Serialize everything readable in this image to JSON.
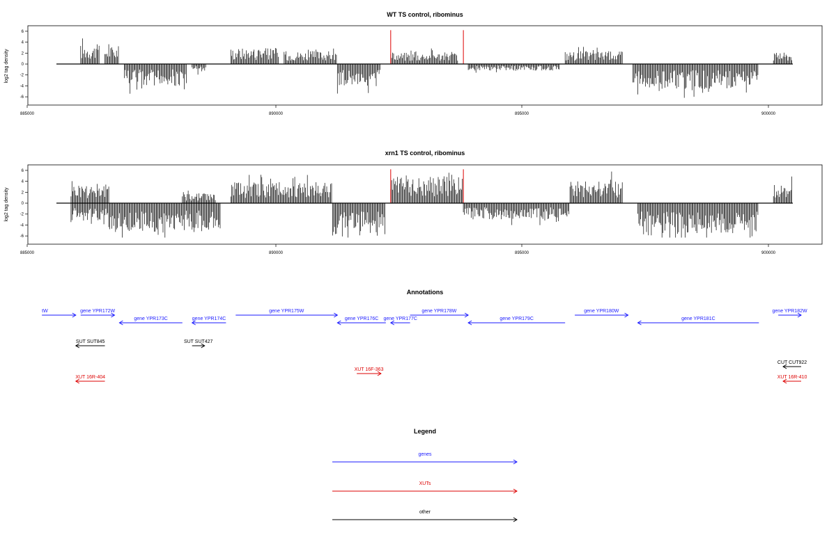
{
  "chart_data": [
    {
      "type": "bar",
      "title": "WT TS control, ribominus",
      "xlabel": "",
      "ylabel": "log2 tag density",
      "xlim": [
        885000,
        901100
      ],
      "ylim": [
        -7,
        6.5
      ],
      "x_ticks": [
        "885000",
        "890000",
        "895000",
        "900000"
      ],
      "y_ticks": [
        "6",
        "4",
        "2",
        "0",
        "-2",
        "-4",
        "-6"
      ],
      "marker_lines": [
        892200,
        893700
      ],
      "marker_color": "#dd0000",
      "segments": [
        {
          "start": 885800,
          "end": 886200,
          "sign": 1,
          "amp": 3.0
        },
        {
          "start": 886300,
          "end": 886600,
          "sign": 1,
          "amp": 2.8
        },
        {
          "start": 886700,
          "end": 888000,
          "sign": -1,
          "amp": 3.3
        },
        {
          "start": 888100,
          "end": 888400,
          "sign": -1,
          "amp": 1.3
        },
        {
          "start": 888900,
          "end": 889900,
          "sign": 1,
          "amp": 2.5
        },
        {
          "start": 890000,
          "end": 891100,
          "sign": 1,
          "amp": 2.0
        },
        {
          "start": 891100,
          "end": 892000,
          "sign": -1,
          "amp": 3.3
        },
        {
          "start": 892200,
          "end": 893600,
          "sign": 1,
          "amp": 1.8
        },
        {
          "start": 893800,
          "end": 895700,
          "sign": -1,
          "amp": 1.0
        },
        {
          "start": 895800,
          "end": 897000,
          "sign": 1,
          "amp": 2.0
        },
        {
          "start": 897200,
          "end": 899800,
          "sign": -1,
          "amp": 3.8
        },
        {
          "start": 900100,
          "end": 900500,
          "sign": 1,
          "amp": 1.8
        }
      ]
    },
    {
      "type": "bar",
      "title": "xrn1 TS control, ribominus",
      "xlabel": "",
      "ylabel": "log2 tag density",
      "xlim": [
        885000,
        901100
      ],
      "ylim": [
        -7,
        6.5
      ],
      "x_ticks": [
        "885000",
        "890000",
        "895000",
        "900000"
      ],
      "y_ticks": [
        "6",
        "4",
        "2",
        "0",
        "-2",
        "-4",
        "-6"
      ],
      "marker_lines": [
        892200,
        893700
      ],
      "marker_color": "#dd0000",
      "segments": [
        {
          "start": 885600,
          "end": 886400,
          "sign": 1,
          "amp": 3.0
        },
        {
          "start": 885600,
          "end": 886400,
          "sign": -1,
          "amp": 3.0
        },
        {
          "start": 886400,
          "end": 888700,
          "sign": -1,
          "amp": 4.5
        },
        {
          "start": 887900,
          "end": 888600,
          "sign": 1,
          "amp": 1.5
        },
        {
          "start": 888900,
          "end": 891000,
          "sign": 1,
          "amp": 3.2
        },
        {
          "start": 891000,
          "end": 892100,
          "sign": -1,
          "amp": 5.0
        },
        {
          "start": 892200,
          "end": 893700,
          "sign": 1,
          "amp": 4.0
        },
        {
          "start": 893700,
          "end": 895900,
          "sign": -1,
          "amp": 2.5
        },
        {
          "start": 895900,
          "end": 897000,
          "sign": 1,
          "amp": 3.5
        },
        {
          "start": 897300,
          "end": 899800,
          "sign": -1,
          "amp": 5.0
        },
        {
          "start": 900100,
          "end": 900500,
          "sign": 1,
          "amp": 3.0
        }
      ]
    }
  ],
  "annotations": {
    "title": "Annotations",
    "features": [
      {
        "label": "tW",
        "start": 885000,
        "end": 885700,
        "strand": "+",
        "kind": "gene",
        "row": 0
      },
      {
        "label": "gene YPR172W",
        "start": 885800,
        "end": 886500,
        "strand": "+",
        "kind": "gene",
        "row": 0
      },
      {
        "label": "gene YPR173C",
        "start": 886600,
        "end": 887900,
        "strand": "-",
        "kind": "gene",
        "row": 1
      },
      {
        "label": "gene YPR174C",
        "start": 888100,
        "end": 888800,
        "strand": "-",
        "kind": "gene",
        "row": 1
      },
      {
        "label": "gene YPR175W",
        "start": 889000,
        "end": 891100,
        "strand": "+",
        "kind": "gene",
        "row": 0
      },
      {
        "label": "gene YPR176C",
        "start": 891100,
        "end": 892100,
        "strand": "-",
        "kind": "gene",
        "row": 1
      },
      {
        "label": "gene YPR177C",
        "start": 892200,
        "end": 892600,
        "strand": "-",
        "kind": "gene",
        "row": 1
      },
      {
        "label": "gene YPR178W",
        "start": 892600,
        "end": 893800,
        "strand": "+",
        "kind": "gene",
        "row": 0
      },
      {
        "label": "gene YPR179C",
        "start": 893800,
        "end": 895800,
        "strand": "-",
        "kind": "gene",
        "row": 1
      },
      {
        "label": "gene YPR180W",
        "start": 896000,
        "end": 897100,
        "strand": "+",
        "kind": "gene",
        "row": 0
      },
      {
        "label": "gene YPR181C",
        "start": 897300,
        "end": 899800,
        "strand": "-",
        "kind": "gene",
        "row": 1
      },
      {
        "label": "gene YPR182W",
        "start": 900200,
        "end": 900800,
        "strand": "+",
        "kind": "gene",
        "row": 0
      },
      {
        "label": "SUT SUT845",
        "start": 885700,
        "end": 886300,
        "strand": "-",
        "kind": "other",
        "row": 2
      },
      {
        "label": "SUT SUT427",
        "start": 888100,
        "end": 888300,
        "strand": "+",
        "kind": "other",
        "row": 2
      },
      {
        "label": "CUT CUT922",
        "start": 900300,
        "end": 900700,
        "strand": "-",
        "kind": "other",
        "row": 3
      },
      {
        "label": "XUT 16F-363",
        "start": 891500,
        "end": 892000,
        "strand": "+",
        "kind": "xut",
        "row": 4
      },
      {
        "label": "XUT 16R-404",
        "start": 885700,
        "end": 886300,
        "strand": "-",
        "kind": "xut",
        "row": 5
      },
      {
        "label": "XUT 16R-410",
        "start": 900300,
        "end": 900700,
        "strand": "-",
        "kind": "xut",
        "row": 5
      }
    ]
  },
  "legend": {
    "title": "Legend",
    "items": [
      {
        "label": "genes",
        "kind": "gene"
      },
      {
        "label": "XUTs",
        "kind": "xut"
      },
      {
        "label": "other",
        "kind": "other"
      }
    ]
  },
  "colors": {
    "gene": "#1a1aff",
    "xut": "#dd0000",
    "other": "#000000",
    "bars": "#000000"
  }
}
